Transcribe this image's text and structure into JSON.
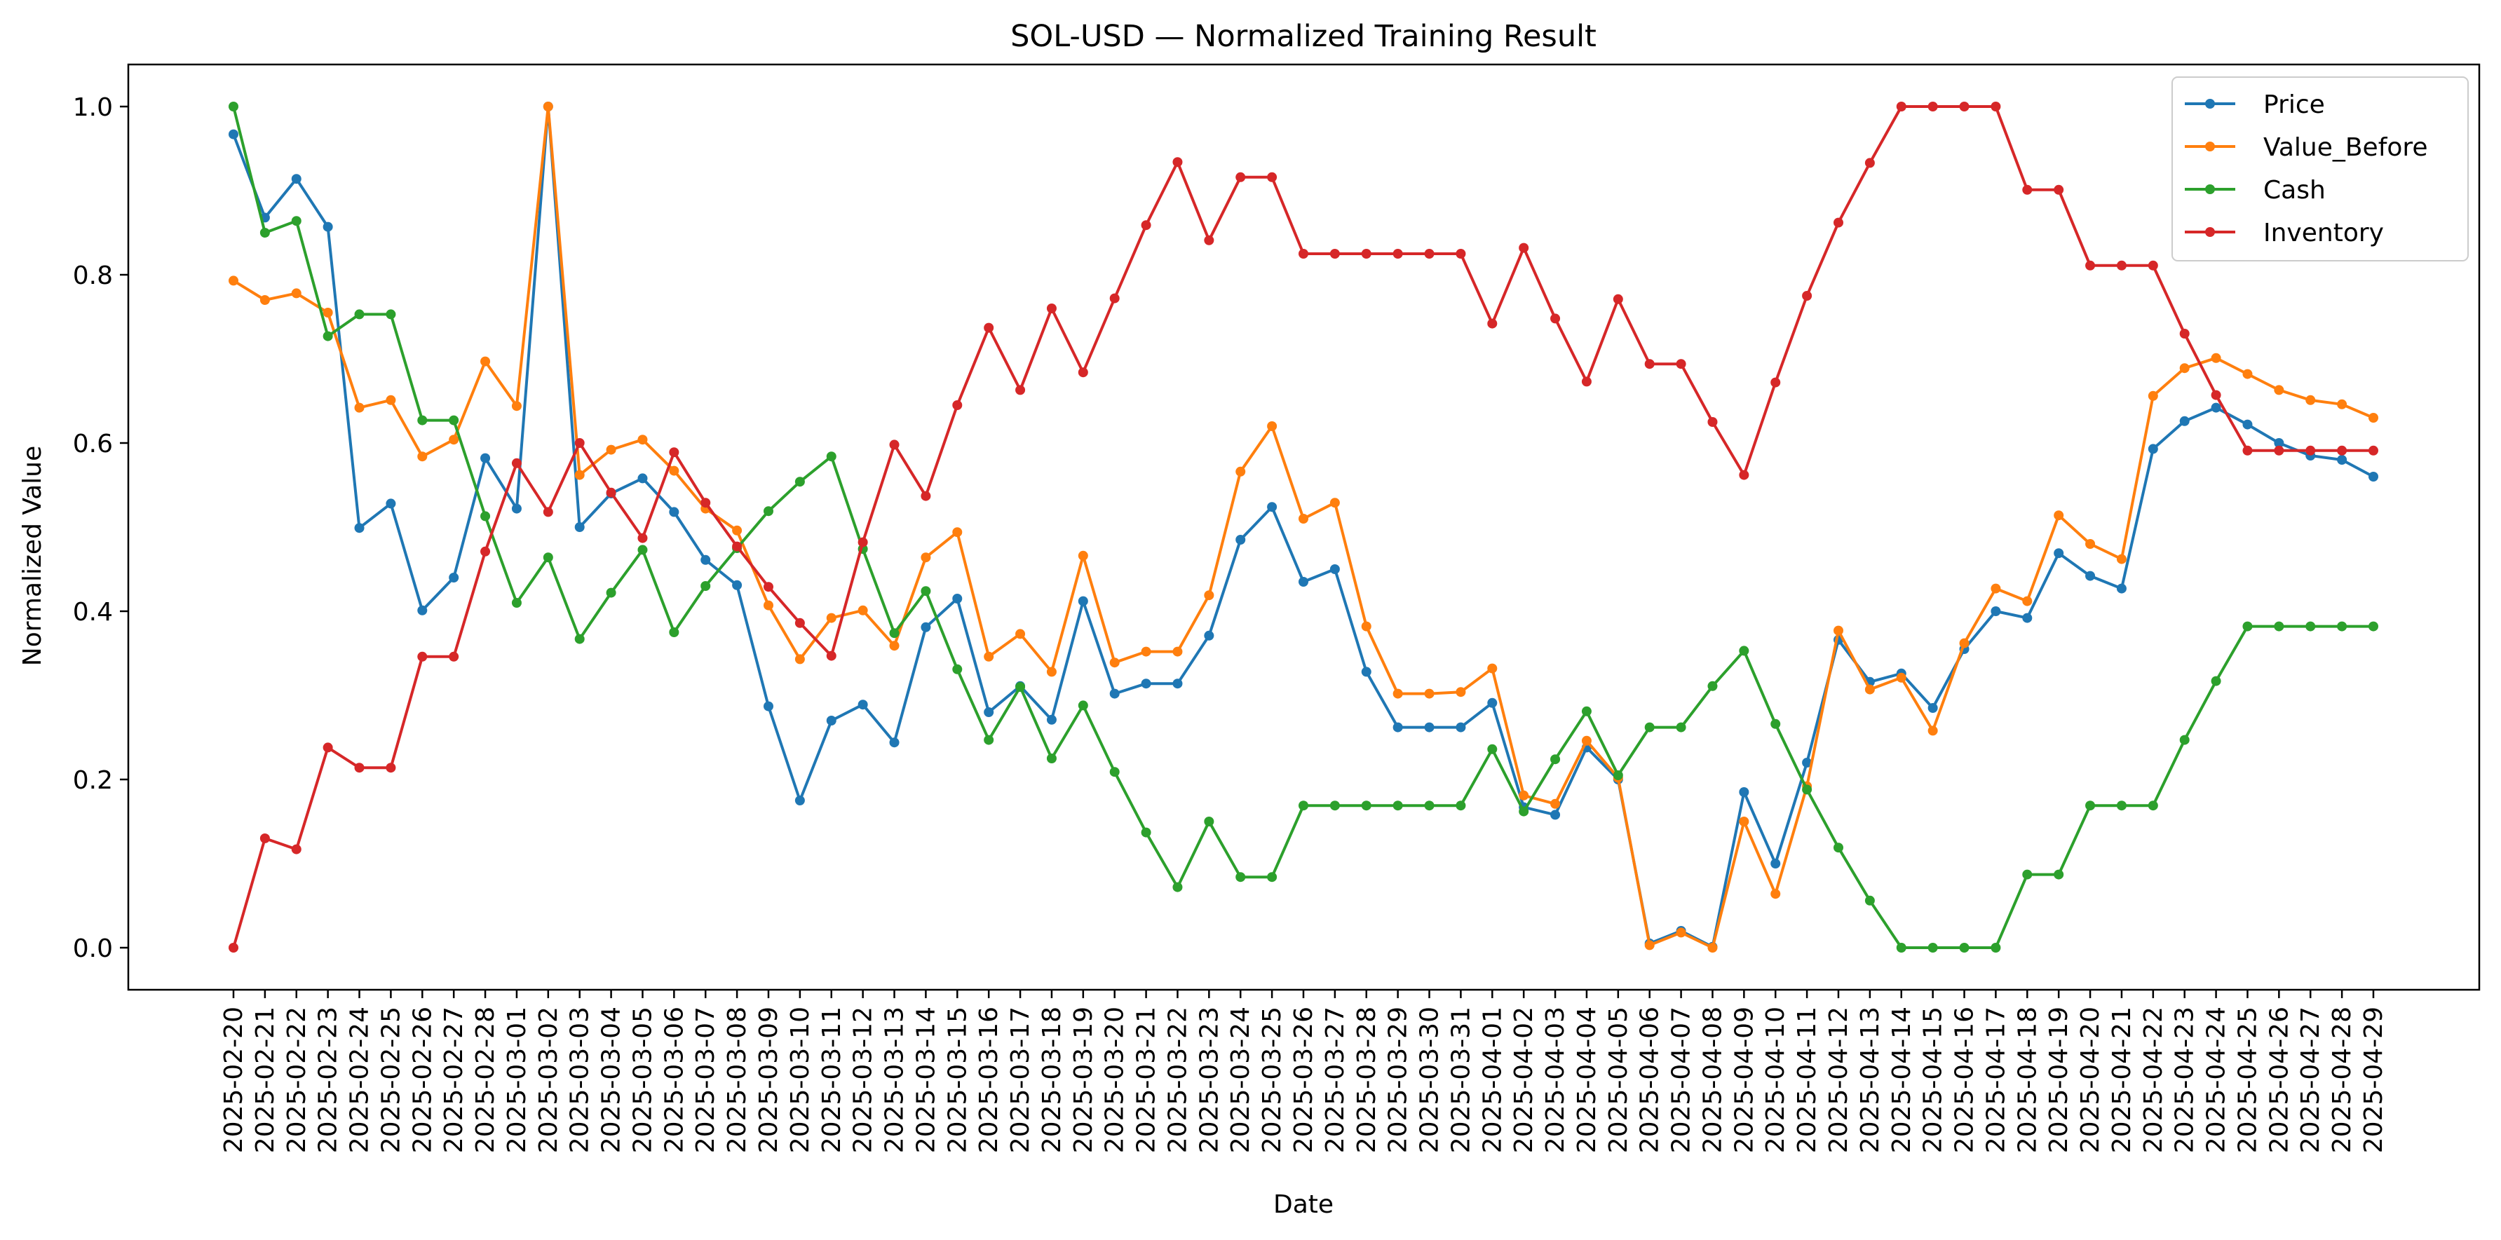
{
  "chart_data": {
    "type": "line",
    "title": "SOL-USD — Normalized Training Result",
    "xlabel": "Date",
    "ylabel": "Normalized Value",
    "ylim": [
      -0.05,
      1.05
    ],
    "yticks": [
      "0.0",
      "0.2",
      "0.4",
      "0.6",
      "0.8",
      "1.0"
    ],
    "grid": false,
    "legend_position": "top-right",
    "x": [
      "2025-02-20",
      "2025-02-21",
      "2025-02-22",
      "2025-02-23",
      "2025-02-24",
      "2025-02-25",
      "2025-02-26",
      "2025-02-27",
      "2025-02-28",
      "2025-03-01",
      "2025-03-02",
      "2025-03-03",
      "2025-03-04",
      "2025-03-05",
      "2025-03-06",
      "2025-03-07",
      "2025-03-08",
      "2025-03-09",
      "2025-03-10",
      "2025-03-11",
      "2025-03-12",
      "2025-03-13",
      "2025-03-14",
      "2025-03-15",
      "2025-03-16",
      "2025-03-17",
      "2025-03-18",
      "2025-03-19",
      "2025-03-20",
      "2025-03-21",
      "2025-03-22",
      "2025-03-23",
      "2025-03-24",
      "2025-03-25",
      "2025-03-26",
      "2025-03-27",
      "2025-03-28",
      "2025-03-29",
      "2025-03-30",
      "2025-03-31",
      "2025-04-01",
      "2025-04-02",
      "2025-04-03",
      "2025-04-04",
      "2025-04-05",
      "2025-04-06",
      "2025-04-07",
      "2025-04-08",
      "2025-04-09",
      "2025-04-10",
      "2025-04-11",
      "2025-04-12",
      "2025-04-13",
      "2025-04-14",
      "2025-04-15",
      "2025-04-16",
      "2025-04-17",
      "2025-04-18",
      "2025-04-19",
      "2025-04-20",
      "2025-04-21",
      "2025-04-22",
      "2025-04-23",
      "2025-04-24",
      "2025-04-25",
      "2025-04-26",
      "2025-04-27",
      "2025-04-28",
      "2025-04-29"
    ],
    "series": [
      {
        "name": "Price",
        "color": "#1f77b4",
        "values": [
          0.967,
          0.868,
          0.914,
          0.857,
          0.499,
          0.528,
          0.401,
          0.44,
          0.582,
          0.522,
          1.0,
          0.5,
          0.54,
          0.558,
          0.518,
          0.461,
          0.431,
          0.287,
          0.175,
          0.27,
          0.289,
          0.244,
          0.381,
          0.415,
          0.28,
          0.311,
          0.271,
          0.412,
          0.302,
          0.314,
          0.314,
          0.371,
          0.485,
          0.524,
          0.435,
          0.45,
          0.328,
          0.262,
          0.262,
          0.262,
          0.291,
          0.167,
          0.158,
          0.238,
          0.2,
          0.005,
          0.02,
          0.001,
          0.185,
          0.1,
          0.22,
          0.366,
          0.316,
          0.326,
          0.285,
          0.355,
          0.4,
          0.392,
          0.469,
          0.442,
          0.427,
          0.593,
          0.626,
          0.642,
          0.622,
          0.6,
          0.585,
          0.58,
          0.56
        ]
      },
      {
        "name": "Value_Before",
        "color": "#ff7f0e",
        "values": [
          0.793,
          0.77,
          0.778,
          0.755,
          0.642,
          0.651,
          0.584,
          0.604,
          0.697,
          0.644,
          1.0,
          0.562,
          0.592,
          0.604,
          0.567,
          0.522,
          0.496,
          0.407,
          0.343,
          0.392,
          0.401,
          0.359,
          0.464,
          0.494,
          0.346,
          0.373,
          0.328,
          0.466,
          0.339,
          0.352,
          0.352,
          0.419,
          0.566,
          0.62,
          0.51,
          0.529,
          0.382,
          0.302,
          0.302,
          0.304,
          0.332,
          0.181,
          0.171,
          0.246,
          0.202,
          0.003,
          0.018,
          0.0,
          0.15,
          0.064,
          0.192,
          0.377,
          0.307,
          0.321,
          0.258,
          0.362,
          0.427,
          0.412,
          0.514,
          0.48,
          0.462,
          0.656,
          0.689,
          0.701,
          0.682,
          0.663,
          0.651,
          0.646,
          0.63
        ]
      },
      {
        "name": "Cash",
        "color": "#2ca02c",
        "values": [
          1.0,
          0.85,
          0.864,
          0.727,
          0.753,
          0.753,
          0.627,
          0.627,
          0.513,
          0.41,
          0.464,
          0.367,
          0.422,
          0.473,
          0.375,
          0.43,
          0.475,
          0.519,
          0.554,
          0.584,
          0.474,
          0.374,
          0.424,
          0.331,
          0.247,
          0.31,
          0.225,
          0.288,
          0.209,
          0.137,
          0.072,
          0.15,
          0.084,
          0.084,
          0.169,
          0.169,
          0.169,
          0.169,
          0.169,
          0.169,
          0.236,
          0.162,
          0.224,
          0.281,
          0.205,
          0.262,
          0.262,
          0.311,
          0.353,
          0.266,
          0.188,
          0.119,
          0.056,
          0.0,
          0.0,
          0.0,
          0.0,
          0.087,
          0.087,
          0.169,
          0.169,
          0.169,
          0.247,
          0.317,
          0.382,
          0.382,
          0.382,
          0.382,
          0.382
        ]
      },
      {
        "name": "Inventory",
        "color": "#d62728",
        "values": [
          0.0,
          0.13,
          0.117,
          0.238,
          0.214,
          0.214,
          0.346,
          0.346,
          0.471,
          0.576,
          0.518,
          0.6,
          0.541,
          0.487,
          0.589,
          0.529,
          0.477,
          0.429,
          0.386,
          0.347,
          0.482,
          0.598,
          0.537,
          0.645,
          0.737,
          0.663,
          0.76,
          0.684,
          0.772,
          0.859,
          0.934,
          0.841,
          0.916,
          0.916,
          0.825,
          0.825,
          0.825,
          0.825,
          0.825,
          0.825,
          0.742,
          0.832,
          0.748,
          0.673,
          0.771,
          0.694,
          0.694,
          0.625,
          0.562,
          0.672,
          0.775,
          0.862,
          0.933,
          1.0,
          1.0,
          1.0,
          1.0,
          0.901,
          0.901,
          0.811,
          0.811,
          0.811,
          0.73,
          0.657,
          0.591,
          0.591,
          0.591,
          0.591,
          0.591
        ]
      }
    ]
  }
}
